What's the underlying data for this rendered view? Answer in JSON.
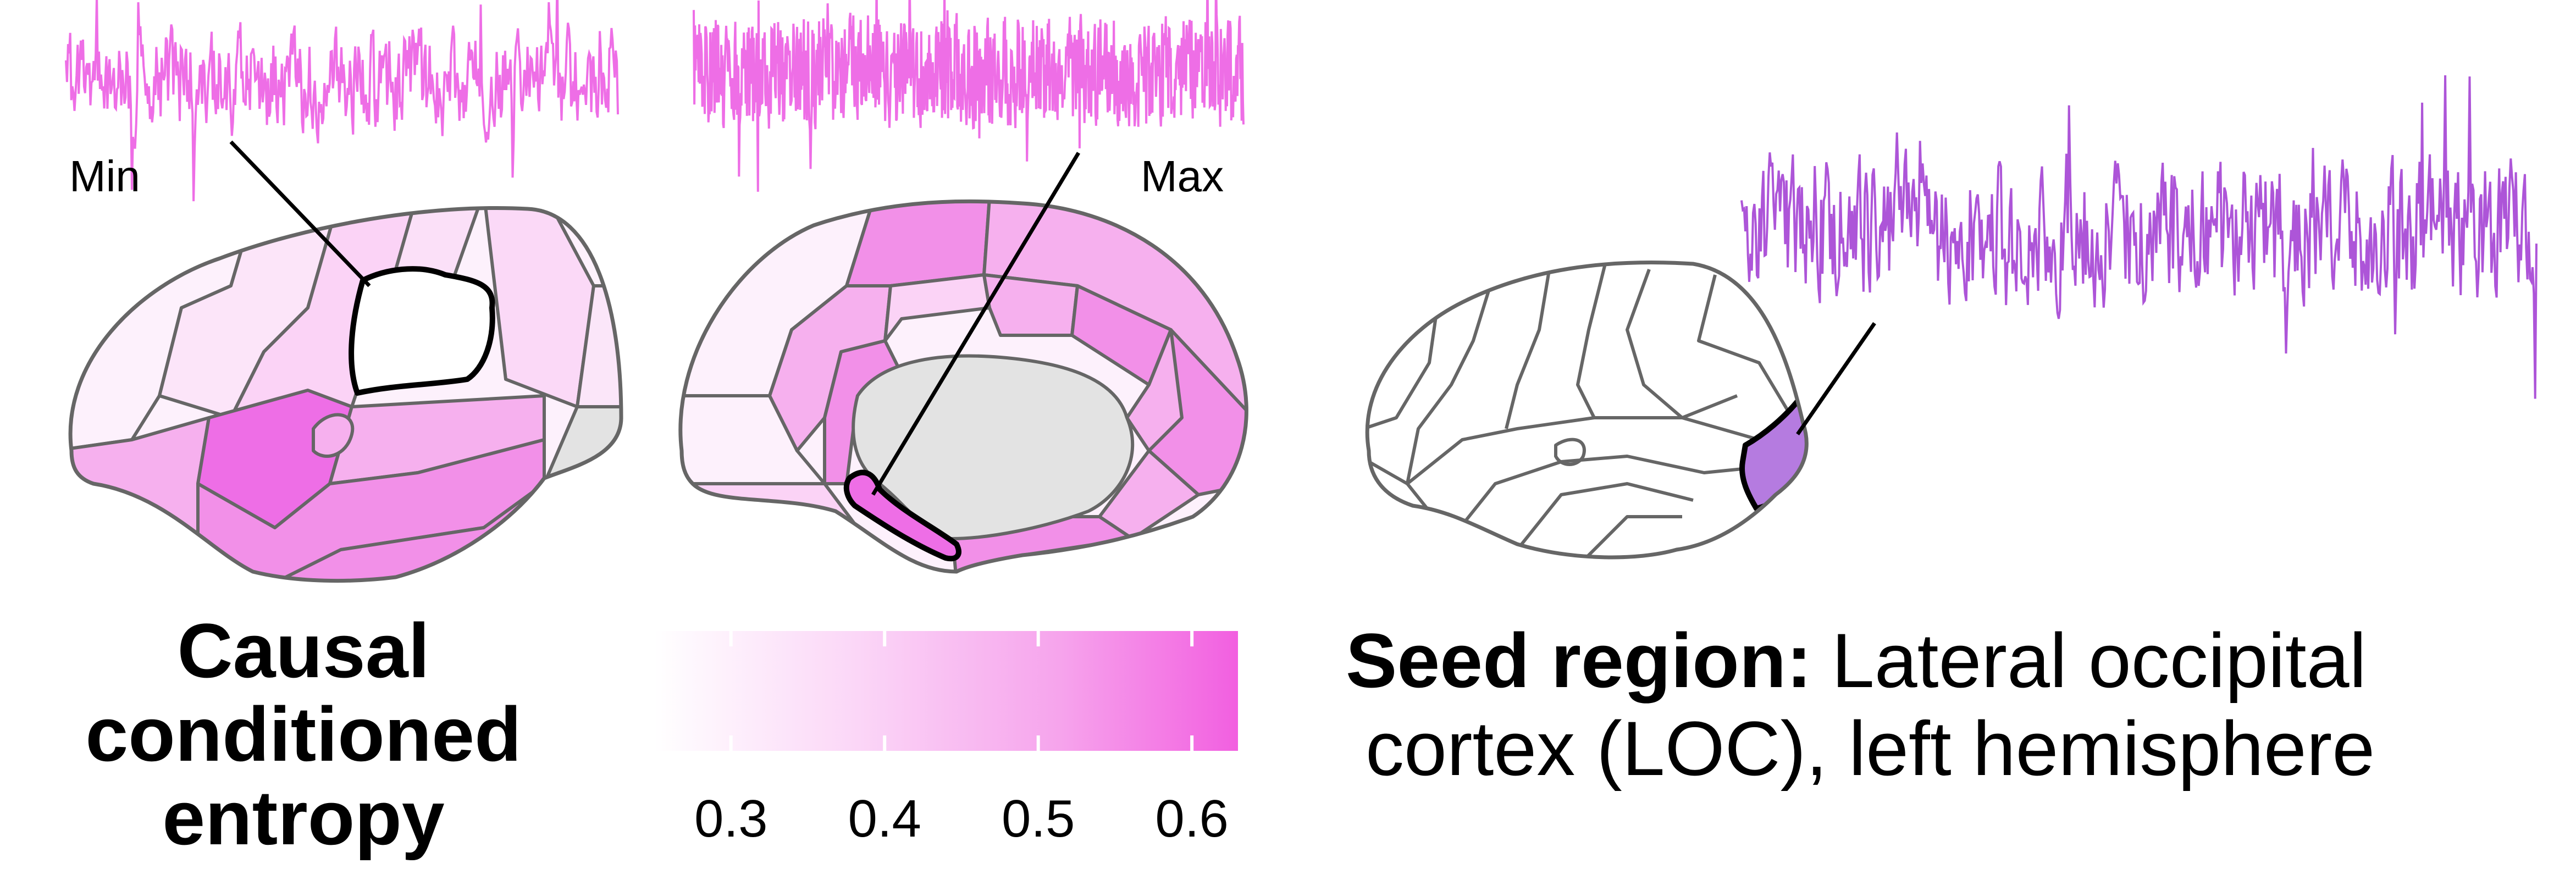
{
  "labels": {
    "min": "Min",
    "max": "Max"
  },
  "measure": {
    "title_line1": "Causal",
    "title_line2": "conditioned",
    "title_line3": "entropy"
  },
  "colorbar": {
    "ticks": [
      "0.3",
      "0.4",
      "0.5",
      "0.6"
    ],
    "tick_values": [
      0.3,
      0.4,
      0.5,
      0.6
    ],
    "range": [
      0.25,
      0.63
    ],
    "color_low": "#ffffff",
    "color_high": "#f25fe0"
  },
  "seed": {
    "label_bold": "Seed region:",
    "label_rest": "Lateral occipital",
    "label_line2": "cortex (LOC), left hemisphere",
    "color": "#b57be0"
  },
  "traces": {
    "min_color": "#ee6ee6",
    "max_color": "#ee6ee6",
    "seed_color": "#ad55d8"
  },
  "colors": {
    "region_border": "#666666",
    "nodata": "#e3e3e3",
    "lowest": "#fdf1fc",
    "low": "#fbd6f7",
    "mid": "#f6b0ee",
    "high": "#f290e8",
    "highest": "#ee6ee6"
  }
}
